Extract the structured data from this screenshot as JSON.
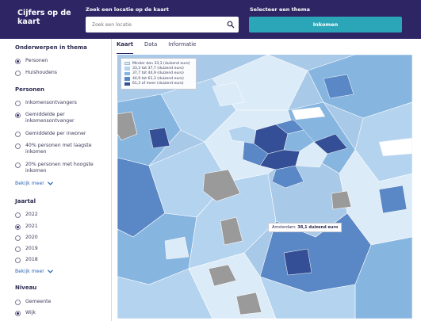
{
  "header": {
    "brand": "Cijfers op de kaart",
    "search_label": "Zoek een locatie op de kaart",
    "search_placeholder": "Zoek een locatie",
    "theme_label": "Selecteer een thema",
    "theme_value": "Inkomen"
  },
  "sidebar": {
    "onderwerpen": {
      "title": "Onderwerpen in thema",
      "options": [
        {
          "label": "Personen",
          "selected": true
        },
        {
          "label": "Huishoudens",
          "selected": false
        }
      ]
    },
    "personen": {
      "title": "Personen",
      "options": [
        {
          "label": "Inkomensontvangers",
          "selected": false
        },
        {
          "label": "Gemiddelde per inkomensontvanger",
          "selected": true
        },
        {
          "label": "Gemiddelde per inwoner",
          "selected": false
        },
        {
          "label": "40% personen met laagste inkomen",
          "selected": false
        },
        {
          "label": "20% personen met hoogste inkomen",
          "selected": false
        }
      ],
      "more_label": "Bekijk meer"
    },
    "jaartal": {
      "title": "Jaartal",
      "options": [
        {
          "label": "2022",
          "selected": false
        },
        {
          "label": "2021",
          "selected": true
        },
        {
          "label": "2020",
          "selected": false
        },
        {
          "label": "2019",
          "selected": false
        },
        {
          "label": "2018",
          "selected": false
        }
      ],
      "more_label": "Bekijk meer"
    },
    "niveau": {
      "title": "Niveau",
      "options": [
        {
          "label": "Gemeente",
          "selected": false
        },
        {
          "label": "Wijk",
          "selected": true
        }
      ]
    }
  },
  "tabs": [
    {
      "label": "Kaart",
      "active": true
    },
    {
      "label": "Data",
      "active": false
    },
    {
      "label": "Informatie",
      "active": false
    }
  ],
  "legend": [
    {
      "label": "Minder dan 33,3 (duizend euro)",
      "color": "#dcebf8"
    },
    {
      "label": "33,3 tot 37,7 (duizend euro)",
      "color": "#b3d3ef"
    },
    {
      "label": "37,7 tot 44,9 (duizend euro)",
      "color": "#86b5e0"
    },
    {
      "label": "44,9 tot 61,3 (duizend euro)",
      "color": "#5a87c5"
    },
    {
      "label": "61,3 of meer (duizend euro)",
      "color": "#344f95"
    }
  ],
  "tooltip": {
    "area": "Amsterdam:",
    "value": "38,1 duizend euro"
  },
  "colors": {
    "header": "#2e2565",
    "theme_button": "#2ba6b8",
    "no_data": "#9a9a9a"
  }
}
